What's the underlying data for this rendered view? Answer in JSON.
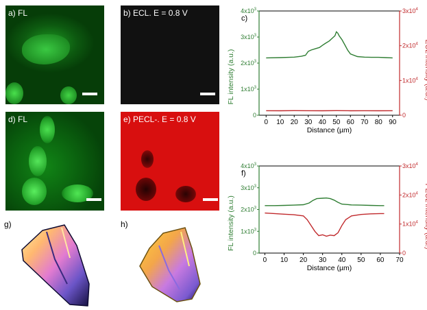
{
  "panels": {
    "a": "a) FL",
    "b": "b) ECL. E = 0.8 V",
    "d": "d) FL",
    "e": "e) PECL-. E = 0.8 V",
    "g": "g)",
    "h": "h)"
  },
  "colors": {
    "fl": "#2e7d32",
    "ecl": "#c0282b",
    "fl_image": "#39d13c",
    "pecl_image": "#d80f0f"
  },
  "chart_data": [
    {
      "type": "line",
      "panel_label": "c)",
      "xlabel": "Distance (µm)",
      "ylabel": "FL intensity (a.u.)",
      "y2label": "ECL intensity (a.u.)",
      "xlim": [
        -5,
        95
      ],
      "xticks": [
        "0",
        "10",
        "20",
        "30",
        "40",
        "50",
        "60",
        "70",
        "80",
        "90"
      ],
      "ylim": [
        0,
        4000
      ],
      "yticks": [
        {
          "v": 0,
          "base": "0",
          "exp": ""
        },
        {
          "v": 1000,
          "base": "1x10",
          "exp": "3"
        },
        {
          "v": 2000,
          "base": "2x10",
          "exp": "3"
        },
        {
          "v": 3000,
          "base": "3x10",
          "exp": "3"
        },
        {
          "v": 4000,
          "base": "4x10",
          "exp": "3"
        }
      ],
      "y2lim": [
        0,
        30000
      ],
      "y2ticks": [
        {
          "v": 0,
          "base": "0",
          "exp": ""
        },
        {
          "v": 10000,
          "base": "1x10",
          "exp": "4"
        },
        {
          "v": 20000,
          "base": "2x10",
          "exp": "4"
        },
        {
          "v": 30000,
          "base": "3x10",
          "exp": "4"
        }
      ],
      "series": [
        {
          "axis": "left",
          "color": "#2e7d32",
          "x": [
            0,
            10,
            20,
            25,
            28,
            30,
            32,
            35,
            38,
            40,
            42,
            45,
            47,
            49,
            50,
            51,
            52,
            54,
            56,
            58,
            60,
            65,
            70,
            75,
            80,
            85,
            90
          ],
          "y": [
            2200,
            2210,
            2230,
            2260,
            2300,
            2450,
            2500,
            2550,
            2600,
            2680,
            2750,
            2850,
            2950,
            3050,
            3200,
            3150,
            3050,
            2900,
            2700,
            2500,
            2350,
            2250,
            2230,
            2220,
            2220,
            2210,
            2200
          ]
        },
        {
          "axis": "right",
          "color": "#c0282b",
          "x": [
            0,
            10,
            20,
            30,
            40,
            50,
            60,
            70,
            80,
            90
          ],
          "y": [
            1300,
            1280,
            1320,
            1300,
            1280,
            1330,
            1290,
            1300,
            1280,
            1300
          ]
        }
      ]
    },
    {
      "type": "line",
      "panel_label": "f)",
      "xlabel": "Distance (µm)",
      "ylabel": "FL intensity (a.u.)",
      "y2label": "PECL intensity (a.u.)",
      "xlim": [
        -3,
        70
      ],
      "xticks": [
        "0",
        "10",
        "20",
        "30",
        "40",
        "50",
        "60",
        "70"
      ],
      "ylim": [
        0,
        4000
      ],
      "yticks": [
        {
          "v": 0,
          "base": "0",
          "exp": ""
        },
        {
          "v": 1000,
          "base": "1x10",
          "exp": "3"
        },
        {
          "v": 2000,
          "base": "2x10",
          "exp": "3"
        },
        {
          "v": 3000,
          "base": "3x10",
          "exp": "3"
        },
        {
          "v": 4000,
          "base": "4x10",
          "exp": "3"
        }
      ],
      "y2lim": [
        0,
        30000
      ],
      "y2ticks": [
        {
          "v": 0,
          "base": "0",
          "exp": ""
        },
        {
          "v": 10000,
          "base": "1x10",
          "exp": "4"
        },
        {
          "v": 20000,
          "base": "2x10",
          "exp": "4"
        },
        {
          "v": 30000,
          "base": "3x10",
          "exp": "4"
        }
      ],
      "series": [
        {
          "axis": "left",
          "color": "#2e7d32",
          "x": [
            0,
            5,
            10,
            15,
            20,
            23,
            25,
            27,
            30,
            32,
            34,
            36,
            38,
            40,
            45,
            50,
            55,
            60,
            62
          ],
          "y": [
            2180,
            2180,
            2190,
            2200,
            2220,
            2300,
            2420,
            2500,
            2520,
            2530,
            2500,
            2430,
            2330,
            2250,
            2210,
            2200,
            2190,
            2180,
            2180
          ]
        },
        {
          "axis": "right",
          "color": "#c0282b",
          "x": [
            0,
            5,
            10,
            15,
            20,
            22,
            24,
            26,
            28,
            30,
            32,
            34,
            36,
            38,
            40,
            42,
            45,
            50,
            55,
            60,
            62
          ],
          "y": [
            13800,
            13600,
            13400,
            13200,
            12800,
            11500,
            9500,
            7500,
            6000,
            6300,
            5800,
            6200,
            6000,
            7000,
            9500,
            11500,
            12800,
            13300,
            13500,
            13600,
            13600
          ]
        }
      ]
    }
  ]
}
